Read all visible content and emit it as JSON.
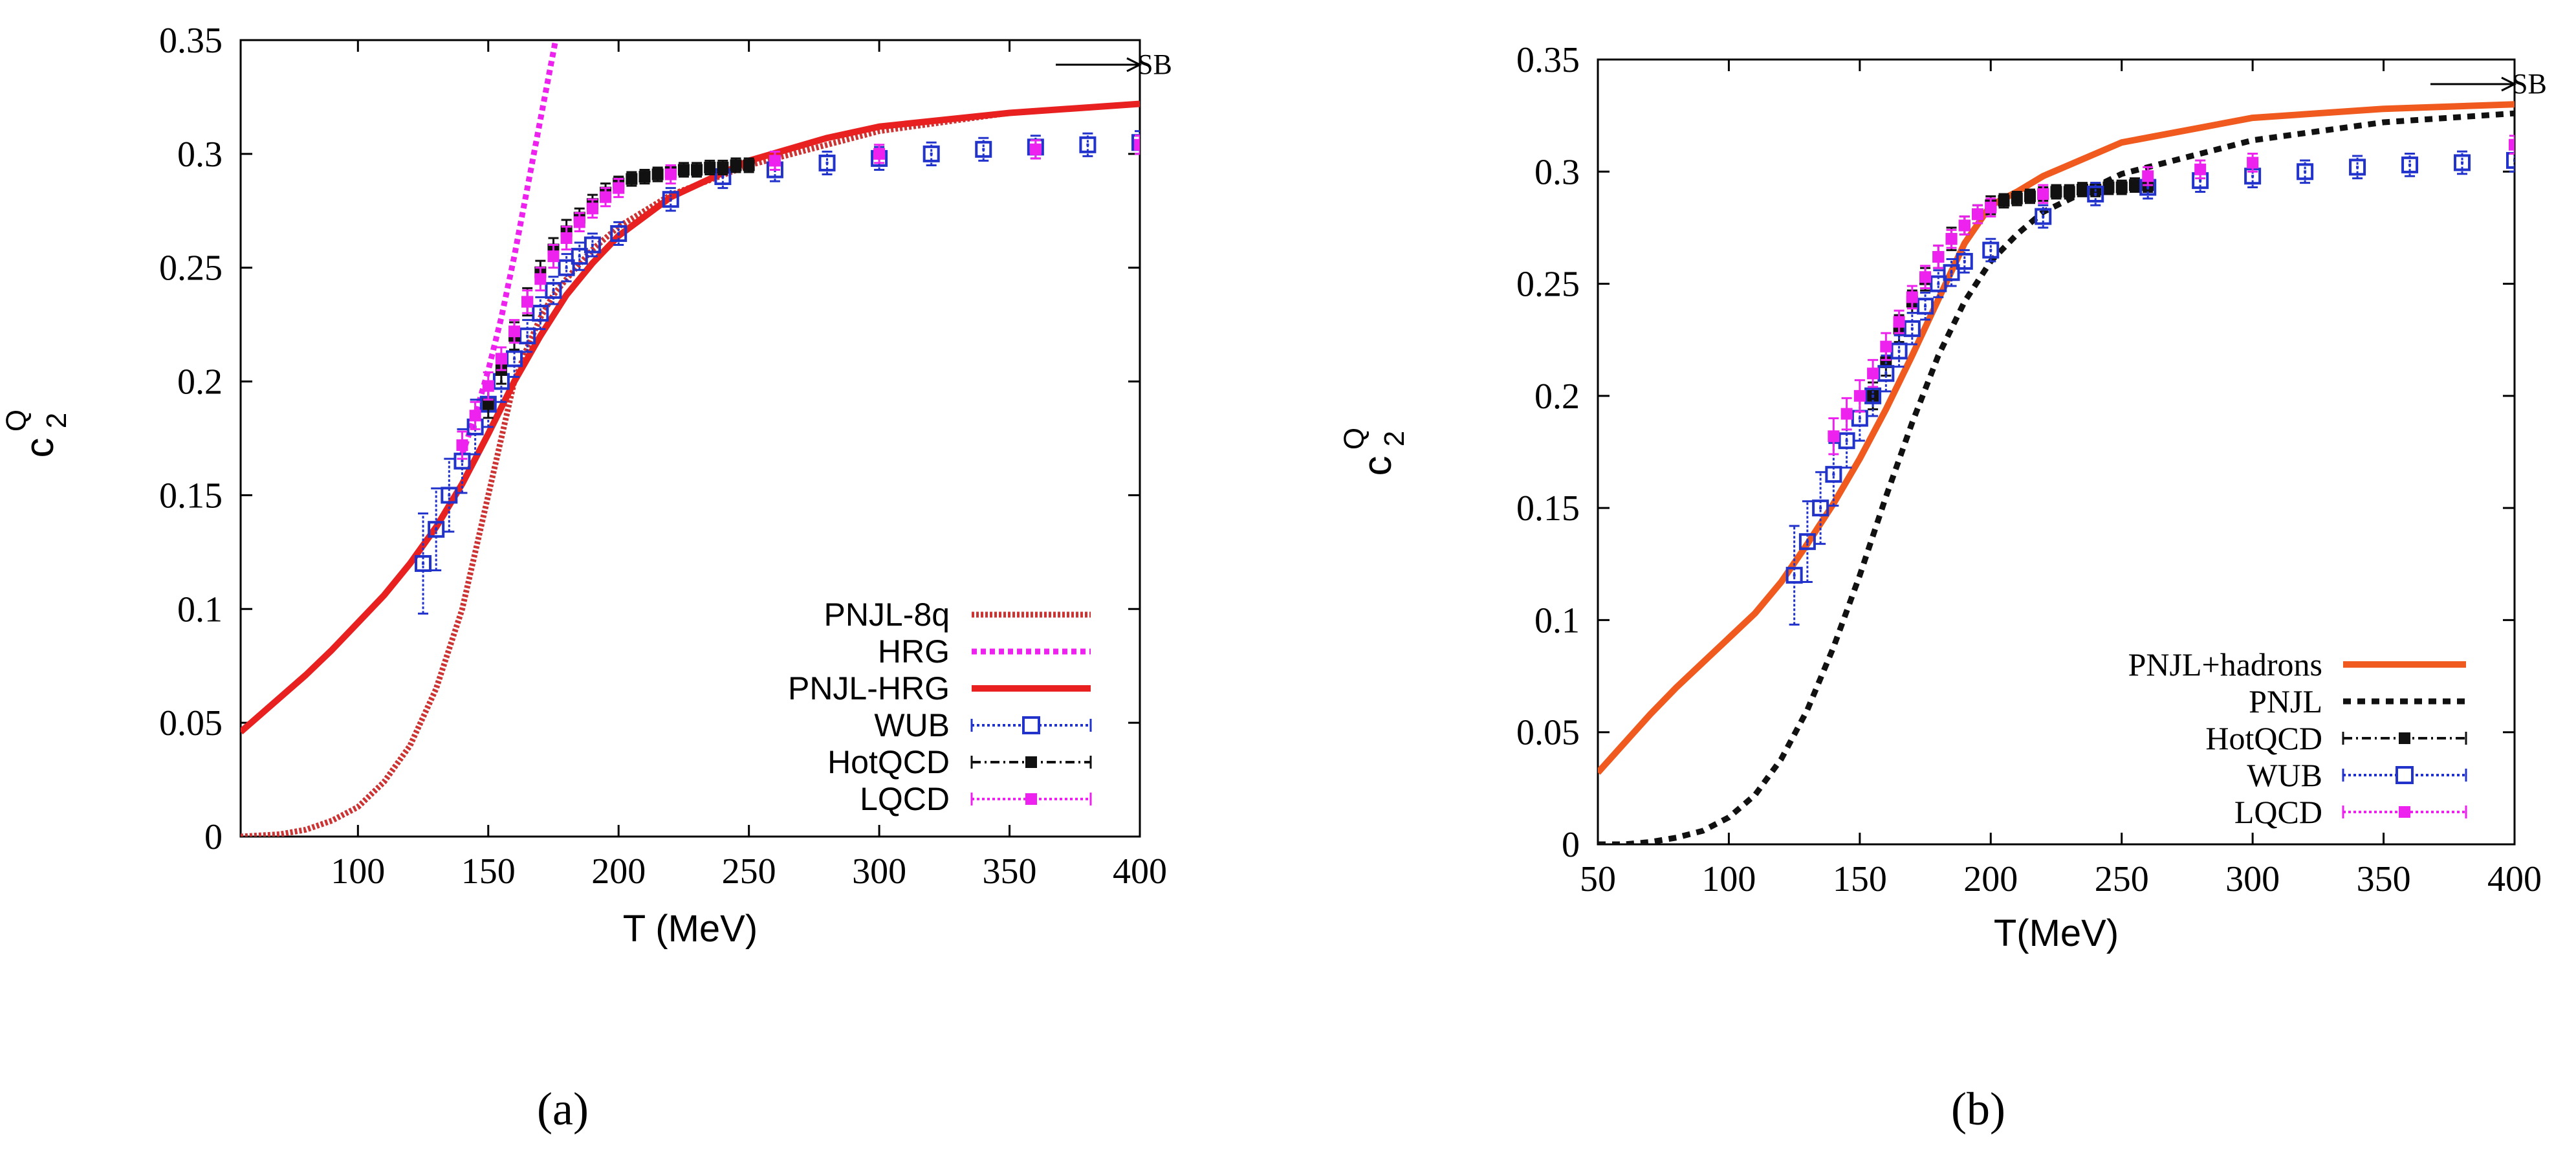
{
  "figure_labels": [
    "(a)",
    "(b)"
  ],
  "colors": {
    "pnjl_8q": "#cc3333",
    "hrg": "#ee22ee",
    "pnjl_hrg": "#e82020",
    "wub": "#2233cc",
    "hotqcd": "#111111",
    "lqcd": "#ee22ee",
    "pnjl_hadrons": "#f05a1e",
    "pnjl": "#111111"
  },
  "chart_data": [
    {
      "type": "line",
      "panel": "(a)",
      "xlabel": "T (MeV)",
      "ylabel_main": "c",
      "ylabel_sub": "2",
      "ylabel_sup": "Q",
      "xlim": [
        55,
        400
      ],
      "ylim": [
        0,
        0.35
      ],
      "xticks": [
        100,
        150,
        200,
        250,
        300,
        350,
        400
      ],
      "yticks": [
        0,
        0.05,
        0.1,
        0.15,
        0.2,
        0.25,
        0.3,
        0.35
      ],
      "sb_label": "SB",
      "legend_position": "bottom-right",
      "series": [
        {
          "name": "PNJL-8q",
          "style": "dense-dotted",
          "color_key": "pnjl_8q",
          "x": [
            55,
            70,
            80,
            90,
            100,
            110,
            120,
            130,
            140,
            150,
            160,
            165,
            170,
            175,
            180,
            190,
            200,
            220,
            250,
            300,
            350,
            400
          ],
          "y": [
            0,
            0.001,
            0.003,
            0.007,
            0.013,
            0.024,
            0.04,
            0.065,
            0.1,
            0.15,
            0.2,
            0.215,
            0.228,
            0.238,
            0.245,
            0.258,
            0.268,
            0.282,
            0.295,
            0.31,
            0.318,
            0.322
          ]
        },
        {
          "name": "HRG",
          "style": "dotted",
          "color_key": "hrg",
          "x": [
            140,
            145,
            150,
            155,
            160,
            165,
            170,
            175,
            180
          ],
          "y": [
            0.168,
            0.185,
            0.205,
            0.228,
            0.255,
            0.285,
            0.315,
            0.345,
            0.375
          ]
        },
        {
          "name": "PNJL-HRG",
          "style": "solid",
          "color_key": "pnjl_hrg",
          "x": [
            55,
            70,
            80,
            90,
            100,
            110,
            120,
            130,
            140,
            150,
            160,
            170,
            180,
            190,
            200,
            220,
            250,
            280,
            300,
            350,
            400
          ],
          "y": [
            0.046,
            0.061,
            0.071,
            0.082,
            0.094,
            0.106,
            0.12,
            0.136,
            0.155,
            0.177,
            0.2,
            0.22,
            0.238,
            0.252,
            0.264,
            0.281,
            0.297,
            0.307,
            0.312,
            0.318,
            0.322
          ]
        },
        {
          "name": "WUB",
          "style": "points",
          "color_key": "wub",
          "x": [
            125,
            130,
            135,
            140,
            145,
            150,
            155,
            160,
            165,
            170,
            175,
            180,
            185,
            190,
            200,
            220,
            240,
            260,
            280,
            300,
            320,
            340,
            360,
            380,
            400
          ],
          "y": [
            0.12,
            0.135,
            0.15,
            0.165,
            0.18,
            0.19,
            0.2,
            0.21,
            0.22,
            0.23,
            0.24,
            0.25,
            0.255,
            0.26,
            0.265,
            0.28,
            0.29,
            0.293,
            0.296,
            0.298,
            0.3,
            0.302,
            0.303,
            0.304,
            0.305
          ],
          "err": [
            0.022,
            0.018,
            0.016,
            0.014,
            0.012,
            0.01,
            0.009,
            0.008,
            0.007,
            0.007,
            0.006,
            0.006,
            0.006,
            0.005,
            0.005,
            0.005,
            0.005,
            0.005,
            0.005,
            0.005,
            0.005,
            0.005,
            0.005,
            0.005,
            0.005
          ]
        },
        {
          "name": "HotQCD",
          "style": "points",
          "color_key": "hotqcd",
          "x": [
            150,
            155,
            160,
            165,
            170,
            175,
            180,
            185,
            190,
            195,
            200,
            205,
            210,
            215,
            220,
            225,
            230,
            235,
            240,
            245,
            250
          ],
          "y": [
            0.19,
            0.205,
            0.22,
            0.235,
            0.248,
            0.258,
            0.266,
            0.272,
            0.278,
            0.283,
            0.287,
            0.289,
            0.29,
            0.291,
            0.292,
            0.293,
            0.293,
            0.294,
            0.294,
            0.295,
            0.295
          ],
          "err": [
            0.006,
            0.006,
            0.006,
            0.006,
            0.005,
            0.005,
            0.005,
            0.004,
            0.004,
            0.004,
            0.003,
            0.003,
            0.003,
            0.003,
            0.003,
            0.003,
            0.003,
            0.003,
            0.003,
            0.003,
            0.003
          ]
        },
        {
          "name": "LQCD",
          "style": "points",
          "color_key": "lqcd",
          "x": [
            140,
            145,
            150,
            155,
            160,
            165,
            170,
            175,
            180,
            185,
            190,
            195,
            200,
            220,
            260,
            300,
            360,
            400
          ],
          "y": [
            0.172,
            0.185,
            0.198,
            0.21,
            0.222,
            0.235,
            0.245,
            0.255,
            0.263,
            0.27,
            0.276,
            0.281,
            0.285,
            0.291,
            0.297,
            0.3,
            0.302,
            0.304
          ],
          "err": [
            0.006,
            0.006,
            0.006,
            0.005,
            0.005,
            0.005,
            0.005,
            0.005,
            0.005,
            0.004,
            0.004,
            0.004,
            0.004,
            0.004,
            0.004,
            0.004,
            0.004,
            0.004
          ]
        }
      ]
    },
    {
      "type": "line",
      "panel": "(b)",
      "xlabel": "T(MeV)",
      "ylabel_main": "c",
      "ylabel_sub": "2",
      "ylabel_sup": "Q",
      "xlim": [
        50,
        400
      ],
      "ylim": [
        0,
        0.35
      ],
      "xticks": [
        50,
        100,
        150,
        200,
        250,
        300,
        350,
        400
      ],
      "yticks": [
        0,
        0.05,
        0.1,
        0.15,
        0.2,
        0.25,
        0.3,
        0.35
      ],
      "sb_label": "SB",
      "legend_position": "bottom-right",
      "series": [
        {
          "name": "PNJL+hadrons",
          "style": "solid",
          "color_key": "pnjl_hadrons",
          "x": [
            50,
            60,
            70,
            80,
            90,
            100,
            110,
            120,
            130,
            140,
            150,
            160,
            170,
            180,
            190,
            200,
            210,
            220,
            250,
            300,
            350,
            400
          ],
          "y": [
            0.032,
            0.045,
            0.058,
            0.07,
            0.081,
            0.092,
            0.103,
            0.117,
            0.134,
            0.152,
            0.172,
            0.194,
            0.218,
            0.243,
            0.268,
            0.285,
            0.291,
            0.298,
            0.313,
            0.324,
            0.328,
            0.33
          ]
        },
        {
          "name": "PNJL",
          "style": "dashed-dotted",
          "color_key": "pnjl",
          "x": [
            50,
            60,
            70,
            80,
            90,
            100,
            110,
            120,
            130,
            140,
            150,
            160,
            170,
            180,
            190,
            200,
            210,
            220,
            250,
            300,
            350,
            400
          ],
          "y": [
            0,
            0,
            0.001,
            0.003,
            0.006,
            0.012,
            0.022,
            0.038,
            0.06,
            0.088,
            0.12,
            0.155,
            0.188,
            0.218,
            0.242,
            0.26,
            0.272,
            0.282,
            0.299,
            0.314,
            0.322,
            0.326
          ]
        },
        {
          "name": "HotQCD",
          "style": "points",
          "color_key": "hotqcd",
          "x": [
            155,
            160,
            165,
            170,
            175,
            180,
            185,
            190,
            195,
            200,
            205,
            210,
            215,
            220,
            225,
            230,
            235,
            240,
            245,
            250,
            255,
            260
          ],
          "y": [
            0.2,
            0.215,
            0.23,
            0.242,
            0.252,
            0.262,
            0.27,
            0.276,
            0.281,
            0.285,
            0.287,
            0.288,
            0.289,
            0.29,
            0.291,
            0.291,
            0.292,
            0.292,
            0.293,
            0.293,
            0.294,
            0.294
          ],
          "err": [
            0.006,
            0.006,
            0.006,
            0.005,
            0.005,
            0.005,
            0.005,
            0.004,
            0.004,
            0.004,
            0.003,
            0.003,
            0.003,
            0.003,
            0.003,
            0.003,
            0.003,
            0.003,
            0.003,
            0.003,
            0.003,
            0.003
          ]
        },
        {
          "name": "WUB",
          "style": "points",
          "color_key": "wub",
          "x": [
            125,
            130,
            135,
            140,
            145,
            150,
            155,
            160,
            165,
            170,
            175,
            180,
            185,
            190,
            200,
            220,
            240,
            260,
            280,
            300,
            320,
            340,
            360,
            380,
            400
          ],
          "y": [
            0.12,
            0.135,
            0.15,
            0.165,
            0.18,
            0.19,
            0.2,
            0.21,
            0.22,
            0.23,
            0.24,
            0.25,
            0.255,
            0.26,
            0.265,
            0.28,
            0.29,
            0.293,
            0.296,
            0.298,
            0.3,
            0.302,
            0.303,
            0.304,
            0.305
          ],
          "err": [
            0.022,
            0.018,
            0.016,
            0.014,
            0.012,
            0.01,
            0.009,
            0.008,
            0.007,
            0.007,
            0.006,
            0.006,
            0.006,
            0.005,
            0.005,
            0.005,
            0.005,
            0.005,
            0.005,
            0.005,
            0.005,
            0.005,
            0.005,
            0.005,
            0.005
          ]
        },
        {
          "name": "LQCD",
          "style": "points",
          "color_key": "lqcd",
          "x": [
            140,
            145,
            150,
            155,
            160,
            165,
            170,
            175,
            180,
            185,
            190,
            195,
            200,
            220,
            260,
            280,
            300,
            400
          ],
          "y": [
            0.182,
            0.192,
            0.2,
            0.21,
            0.222,
            0.233,
            0.244,
            0.253,
            0.262,
            0.27,
            0.276,
            0.281,
            0.284,
            0.29,
            0.298,
            0.301,
            0.304,
            0.312
          ],
          "err": [
            0.008,
            0.007,
            0.007,
            0.006,
            0.006,
            0.005,
            0.005,
            0.005,
            0.005,
            0.004,
            0.004,
            0.004,
            0.004,
            0.004,
            0.004,
            0.004,
            0.004,
            0.004
          ]
        }
      ]
    }
  ]
}
